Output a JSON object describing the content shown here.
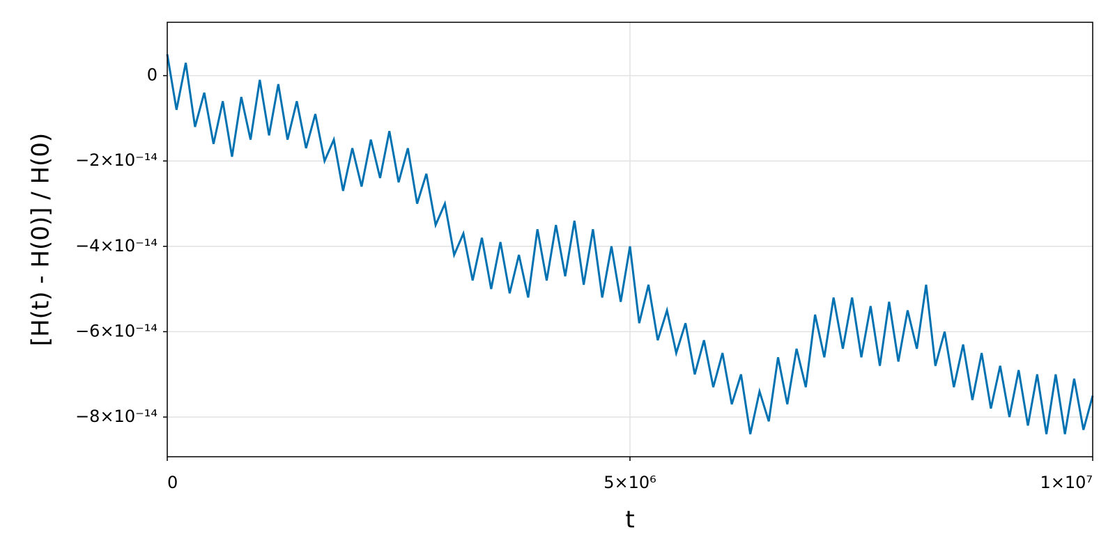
{
  "chart_data": {
    "type": "line",
    "x_label": "t",
    "y_label": "[H(t) - H(0)] / H(0)",
    "color": "#0072b2",
    "grid": true,
    "xlim": [
      0,
      10000000
    ],
    "ylim": [
      -8.93e-14,
      1.25e-14
    ],
    "xticks": [
      0,
      {
        "value": 5000000,
        "label": "5×10⁶"
      },
      {
        "value": 10000000,
        "label": "1×10⁷"
      }
    ],
    "yticks": [
      0,
      {
        "value": -2e-14,
        "label": "−2×10⁻¹⁴"
      },
      {
        "value": -4e-14,
        "label": "−4×10⁻¹⁴"
      },
      {
        "value": -6e-14,
        "label": "−6×10⁻¹⁴"
      },
      {
        "value": -8e-14,
        "label": "−8×10⁻¹⁴"
      }
    ],
    "x": [
      0,
      100000,
      200000,
      300000,
      400000,
      500000,
      600000,
      700000,
      800000,
      900000,
      1000000,
      1100000,
      1200000,
      1300000,
      1400000,
      1500000,
      1600000,
      1700000,
      1800000,
      1900000,
      2000000,
      2100000,
      2200000,
      2300000,
      2400000,
      2500000,
      2600000,
      2700000,
      2800000,
      2900000,
      3000000,
      3100000,
      3200000,
      3300000,
      3400000,
      3500000,
      3600000,
      3700000,
      3800000,
      3900000,
      4000000,
      4100000,
      4200000,
      4300000,
      4400000,
      4500000,
      4600000,
      4700000,
      4800000,
      4900000,
      5000000,
      5100000,
      5200000,
      5300000,
      5400000,
      5500000,
      5600000,
      5700000,
      5800000,
      5900000,
      6000000,
      6100000,
      6200000,
      6300000,
      6400000,
      6500000,
      6600000,
      6700000,
      6800000,
      6900000,
      7000000,
      7100000,
      7200000,
      7300000,
      7400000,
      7500000,
      7600000,
      7700000,
      7800000,
      7900000,
      8000000,
      8100000,
      8200000,
      8300000,
      8400000,
      8500000,
      8600000,
      8700000,
      8800000,
      8900000,
      9000000,
      9100000,
      9200000,
      9300000,
      9400000,
      9500000,
      9600000,
      9700000,
      9800000,
      9900000,
      10000000
    ],
    "values": [
      5e-15,
      -8e-15,
      3e-15,
      -1.2e-14,
      -4e-15,
      -1.6e-14,
      -6e-15,
      -1.9e-14,
      -5e-15,
      -1.5e-14,
      -1e-15,
      -1.4e-14,
      -2e-15,
      -1.5e-14,
      -6e-15,
      -1.7e-14,
      -9e-15,
      -2e-14,
      -1.5e-14,
      -2.7e-14,
      -1.7e-14,
      -2.6e-14,
      -1.5e-14,
      -2.4e-14,
      -1.3e-14,
      -2.5e-14,
      -1.7e-14,
      -3e-14,
      -2.3e-14,
      -3.5e-14,
      -3e-14,
      -4.2e-14,
      -3.7e-14,
      -4.8e-14,
      -3.8e-14,
      -5e-14,
      -3.9e-14,
      -5.1e-14,
      -4.2e-14,
      -5.2e-14,
      -3.6e-14,
      -4.8e-14,
      -3.5e-14,
      -4.7e-14,
      -3.4e-14,
      -4.9e-14,
      -3.6e-14,
      -5.2e-14,
      -4e-14,
      -5.3e-14,
      -4e-14,
      -5.8e-14,
      -4.9e-14,
      -6.2e-14,
      -5.5e-14,
      -6.5e-14,
      -5.8e-14,
      -7e-14,
      -6.2e-14,
      -7.3e-14,
      -6.5e-14,
      -7.7e-14,
      -7e-14,
      -8.4e-14,
      -7.4e-14,
      -8.1e-14,
      -6.6e-14,
      -7.7e-14,
      -6.4e-14,
      -7.3e-14,
      -5.6e-14,
      -6.6e-14,
      -5.2e-14,
      -6.4e-14,
      -5.2e-14,
      -6.6e-14,
      -5.4e-14,
      -6.8e-14,
      -5.3e-14,
      -6.7e-14,
      -5.5e-14,
      -6.4e-14,
      -4.9e-14,
      -6.8e-14,
      -6e-14,
      -7.3e-14,
      -6.3e-14,
      -7.6e-14,
      -6.5e-14,
      -7.8e-14,
      -6.8e-14,
      -8e-14,
      -6.9e-14,
      -8.2e-14,
      -7e-14,
      -8.4e-14,
      -7e-14,
      -8.4e-14,
      -7.1e-14,
      -8.3e-14,
      -7.5e-14
    ]
  }
}
